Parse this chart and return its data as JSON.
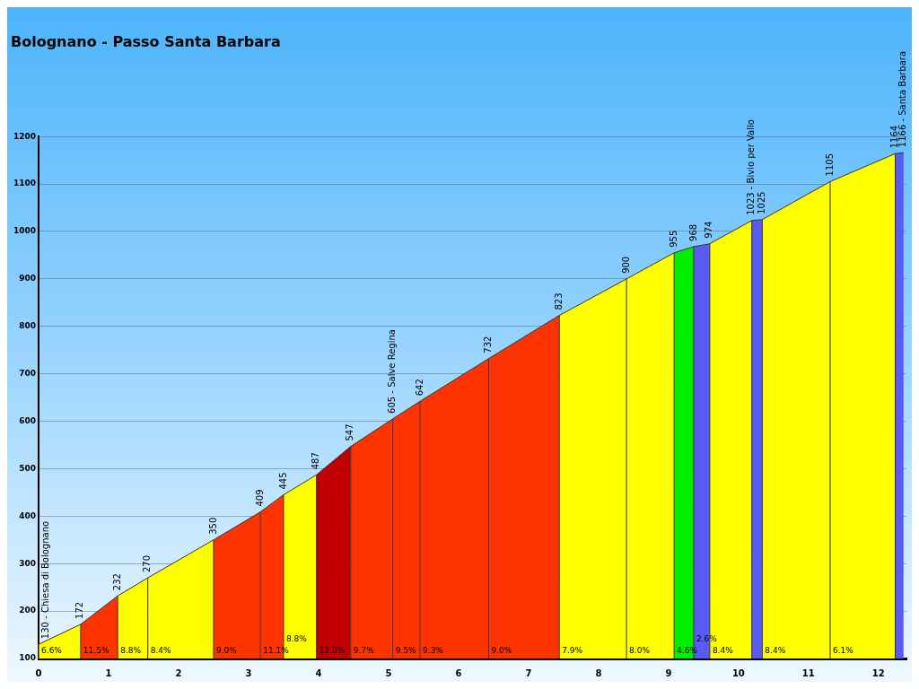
{
  "chart_data": {
    "type": "area",
    "title": "Bolognano - Passo Santa Barbara",
    "xlim": [
      0,
      12.4
    ],
    "xticks": [
      0,
      1,
      2,
      3,
      4,
      5,
      6,
      7,
      8,
      9,
      10,
      11,
      12
    ],
    "ylim": [
      100,
      1200
    ],
    "yticks": [
      100,
      200,
      300,
      400,
      500,
      600,
      700,
      800,
      900,
      1000,
      1100,
      1200
    ],
    "grid": "y",
    "legend": false,
    "marker": "none",
    "series": [
      {
        "color": "#ffff00",
        "x": [
          0,
          0.6
        ],
        "values": [
          130,
          172
        ],
        "value_labels": [
          "130 - Chiesa di Bolognano",
          "172"
        ]
      },
      {
        "color": "#ff3300",
        "x": [
          0.6,
          1.13
        ],
        "values": [
          172,
          232
        ],
        "value_labels": [
          null,
          "232"
        ]
      },
      {
        "color": "#ffff00",
        "x": [
          1.13,
          1.56
        ],
        "values": [
          232,
          270
        ],
        "value_labels": [
          null,
          "270"
        ]
      },
      {
        "color": "#ffff00",
        "x": [
          1.56,
          2.5
        ],
        "values": [
          270,
          350
        ],
        "value_labels": [
          null,
          "350"
        ]
      },
      {
        "color": "#ff3300",
        "x": [
          2.5,
          3.17
        ],
        "values": [
          350,
          409
        ],
        "value_labels": [
          null,
          "409"
        ]
      },
      {
        "color": "#ff3300",
        "x": [
          3.17,
          3.5
        ],
        "values": [
          409,
          445
        ],
        "value_labels": [
          null,
          "445"
        ]
      },
      {
        "color": "#ffff00",
        "x": [
          3.5,
          3.97
        ],
        "values": [
          445,
          487
        ],
        "value_labels": [
          null,
          "487"
        ]
      },
      {
        "color": "#c00000",
        "x": [
          3.97,
          4.46
        ],
        "values": [
          487,
          547
        ],
        "value_labels": [
          null,
          "547"
        ]
      },
      {
        "color": "#ff3300",
        "x": [
          4.46,
          5.06
        ],
        "values": [
          547,
          605
        ],
        "value_labels": [
          null,
          "605 - Salve Regina"
        ]
      },
      {
        "color": "#ff3300",
        "x": [
          5.06,
          5.45
        ],
        "values": [
          605,
          642
        ],
        "value_labels": [
          null,
          "642"
        ]
      },
      {
        "color": "#ff3300",
        "x": [
          5.45,
          6.43
        ],
        "values": [
          642,
          732
        ],
        "value_labels": [
          null,
          "732"
        ]
      },
      {
        "color": "#ff3300",
        "x": [
          6.43,
          7.44
        ],
        "values": [
          732,
          823
        ],
        "value_labels": [
          null,
          "823"
        ]
      },
      {
        "color": "#ffff00",
        "x": [
          7.44,
          8.4
        ],
        "values": [
          823,
          900
        ],
        "value_labels": [
          null,
          "900"
        ]
      },
      {
        "color": "#ffff00",
        "x": [
          8.4,
          9.08
        ],
        "values": [
          900,
          955
        ],
        "value_labels": [
          null,
          "955"
        ]
      },
      {
        "color": "#00ee00",
        "x": [
          9.08,
          9.36
        ],
        "values": [
          955,
          968
        ],
        "value_labels": [
          null,
          "968"
        ]
      },
      {
        "color": "#5a5af5",
        "x": [
          9.36,
          9.59
        ],
        "values": [
          968,
          974
        ],
        "value_labels": [
          null,
          "974"
        ]
      },
      {
        "color": "#ffff00",
        "x": [
          9.59,
          10.19
        ],
        "values": [
          974,
          1023
        ],
        "value_labels": [
          null,
          "1023 - Bivio per Vallo"
        ]
      },
      {
        "color": "#5a5af5",
        "x": [
          10.19,
          10.34
        ],
        "values": [
          1023,
          1025
        ],
        "value_labels": [
          null,
          "1025"
        ]
      },
      {
        "color": "#ffff00",
        "x": [
          10.34,
          11.31
        ],
        "values": [
          1025,
          1105
        ],
        "value_labels": [
          null,
          "1105"
        ]
      },
      {
        "color": "#ffff00",
        "x": [
          11.31,
          12.24
        ],
        "values": [
          1105,
          1164
        ],
        "value_labels": [
          null,
          "1164"
        ]
      },
      {
        "color": "#5a5af5",
        "x": [
          12.24,
          12.36
        ],
        "values": [
          1164,
          1166
        ],
        "value_labels": [
          null,
          "1166 - Santa Barbara"
        ]
      }
    ],
    "annotations": [
      {
        "text": "6.6%",
        "x": 0,
        "y": 100
      },
      {
        "text": "11.5%",
        "x": 0.6,
        "y": 100
      },
      {
        "text": "8.8%",
        "x": 1.13,
        "y": 100
      },
      {
        "text": "8.4%",
        "x": 1.56,
        "y": 100
      },
      {
        "text": "9.0%",
        "x": 2.5,
        "y": 100
      },
      {
        "text": "11.1%",
        "x": 3.17,
        "y": 100
      },
      {
        "text": "8.8%",
        "x": 3.5,
        "y": 100
      },
      {
        "text": "12.0%",
        "x": 3.97,
        "y": 100
      },
      {
        "text": "9.7%",
        "x": 4.46,
        "y": 100
      },
      {
        "text": "9.5%",
        "x": 5.06,
        "y": 100
      },
      {
        "text": "9.3%",
        "x": 5.45,
        "y": 100
      },
      {
        "text": "9.0%",
        "x": 6.43,
        "y": 100
      },
      {
        "text": "7.9%",
        "x": 7.44,
        "y": 100
      },
      {
        "text": "8.0%",
        "x": 8.4,
        "y": 100
      },
      {
        "text": "4.6%",
        "x": 9.08,
        "y": 100
      },
      {
        "text": "2.6%",
        "x": 9.36,
        "y": 100
      },
      {
        "text": "8.4%",
        "x": 9.59,
        "y": 100
      },
      {
        "text": "8.4%",
        "x": 10.34,
        "y": 100
      },
      {
        "text": "6.1%",
        "x": 11.31,
        "y": 100
      }
    ]
  }
}
